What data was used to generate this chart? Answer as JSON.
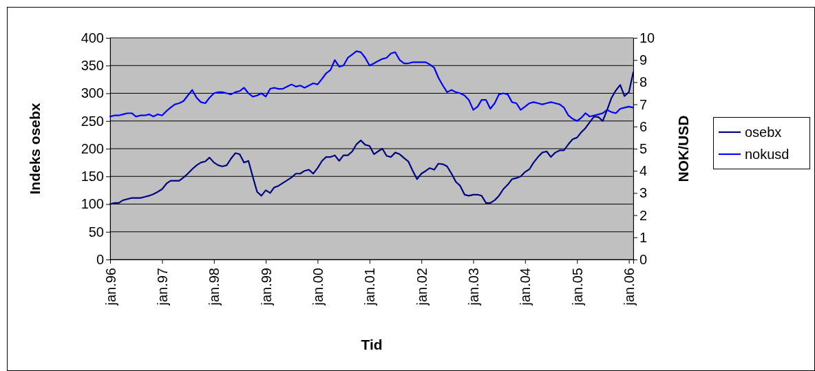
{
  "chart_data": {
    "type": "line",
    "xlabel": "Tid",
    "ylabel": "Indeks osebx",
    "y2label": "NOK/USD",
    "x": [
      "1996-01",
      "1996-02",
      "1996-03",
      "1996-04",
      "1996-05",
      "1996-06",
      "1996-07",
      "1996-08",
      "1996-09",
      "1996-10",
      "1996-11",
      "1996-12",
      "1997-01",
      "1997-02",
      "1997-03",
      "1997-04",
      "1997-05",
      "1997-06",
      "1997-07",
      "1997-08",
      "1997-09",
      "1997-10",
      "1997-11",
      "1997-12",
      "1998-01",
      "1998-02",
      "1998-03",
      "1998-04",
      "1998-05",
      "1998-06",
      "1998-07",
      "1998-08",
      "1998-09",
      "1998-10",
      "1998-11",
      "1998-12",
      "1999-01",
      "1999-02",
      "1999-03",
      "1999-04",
      "1999-05",
      "1999-06",
      "1999-07",
      "1999-08",
      "1999-09",
      "1999-10",
      "1999-11",
      "1999-12",
      "2000-01",
      "2000-02",
      "2000-03",
      "2000-04",
      "2000-05",
      "2000-06",
      "2000-07",
      "2000-08",
      "2000-09",
      "2000-10",
      "2000-11",
      "2000-12",
      "2001-01",
      "2001-02",
      "2001-03",
      "2001-04",
      "2001-05",
      "2001-06",
      "2001-07",
      "2001-08",
      "2001-09",
      "2001-10",
      "2001-11",
      "2001-12",
      "2002-01",
      "2002-02",
      "2002-03",
      "2002-04",
      "2002-05",
      "2002-06",
      "2002-07",
      "2002-08",
      "2002-09",
      "2002-10",
      "2002-11",
      "2002-12",
      "2003-01",
      "2003-02",
      "2003-03",
      "2003-04",
      "2003-05",
      "2003-06",
      "2003-07",
      "2003-08",
      "2003-09",
      "2003-10",
      "2003-11",
      "2003-12",
      "2004-01",
      "2004-02",
      "2004-03",
      "2004-04",
      "2004-05",
      "2004-06",
      "2004-07",
      "2004-08",
      "2004-09",
      "2004-10",
      "2004-11",
      "2004-12",
      "2005-01",
      "2005-02",
      "2005-03",
      "2005-04",
      "2005-05",
      "2005-06",
      "2005-07",
      "2005-08",
      "2005-09",
      "2005-10",
      "2005-11",
      "2005-12",
      "2006-01",
      "2006-02"
    ],
    "series": [
      {
        "name": "osebx",
        "color": "#000080",
        "values": [
          100,
          102,
          102,
          107,
          109,
          111,
          111,
          111,
          113,
          115,
          118,
          122,
          127,
          137,
          142,
          142,
          142,
          148,
          155,
          163,
          170,
          175,
          177,
          184,
          175,
          170,
          168,
          170,
          182,
          192,
          190,
          175,
          178,
          150,
          122,
          115,
          125,
          120,
          130,
          133,
          138,
          143,
          148,
          155,
          155,
          160,
          162,
          155,
          165,
          178,
          185,
          185,
          188,
          178,
          188,
          188,
          195,
          208,
          215,
          207,
          205,
          190,
          195,
          200,
          187,
          185,
          193,
          190,
          183,
          177,
          160,
          145,
          155,
          160,
          165,
          162,
          173,
          172,
          168,
          155,
          140,
          133,
          117,
          115,
          117,
          117,
          115,
          102,
          102,
          107,
          115,
          127,
          135,
          145,
          147,
          150,
          158,
          163,
          175,
          185,
          193,
          195,
          185,
          193,
          197,
          197,
          208,
          217,
          220,
          230,
          237,
          248,
          258,
          257,
          250,
          270,
          292,
          305,
          315,
          295,
          302,
          338
        ]
      },
      {
        "name": "nokusd",
        "color": "#0000ff",
        "axis": "y2",
        "values": [
          6.45,
          6.5,
          6.5,
          6.55,
          6.6,
          6.6,
          6.45,
          6.5,
          6.5,
          6.55,
          6.45,
          6.55,
          6.5,
          6.7,
          6.85,
          7.0,
          7.05,
          7.15,
          7.4,
          7.65,
          7.3,
          7.1,
          7.05,
          7.3,
          7.5,
          7.55,
          7.55,
          7.5,
          7.45,
          7.55,
          7.6,
          7.75,
          7.5,
          7.35,
          7.4,
          7.5,
          7.35,
          7.7,
          7.75,
          7.7,
          7.7,
          7.8,
          7.9,
          7.8,
          7.85,
          7.75,
          7.85,
          7.95,
          7.9,
          8.15,
          8.4,
          8.55,
          9.0,
          8.7,
          8.75,
          9.1,
          9.25,
          9.4,
          9.35,
          9.1,
          8.75,
          8.85,
          8.95,
          9.05,
          9.1,
          9.3,
          9.35,
          9.0,
          8.85,
          8.85,
          8.9,
          8.9,
          8.9,
          8.9,
          8.8,
          8.65,
          8.2,
          7.85,
          7.55,
          7.65,
          7.55,
          7.5,
          7.4,
          7.2,
          6.75,
          6.9,
          7.2,
          7.2,
          6.8,
          7.05,
          7.45,
          7.5,
          7.45,
          7.1,
          7.05,
          6.75,
          6.9,
          7.05,
          7.1,
          7.05,
          7.0,
          7.05,
          7.1,
          7.05,
          7.0,
          6.85,
          6.5,
          6.35,
          6.25,
          6.4,
          6.6,
          6.45,
          6.5,
          6.55,
          6.6,
          6.75,
          6.65,
          6.6,
          6.8,
          6.85,
          6.9,
          6.85
        ]
      }
    ],
    "xlim": [
      "1996-01",
      "2006-02"
    ],
    "xticks": [
      {
        "value": "1996-01",
        "label": "jan.96"
      },
      {
        "value": "1997-01",
        "label": "jan.97"
      },
      {
        "value": "1998-01",
        "label": "jan.98"
      },
      {
        "value": "1999-01",
        "label": "jan.99"
      },
      {
        "value": "2000-01",
        "label": "jan.00"
      },
      {
        "value": "2001-01",
        "label": "jan.01"
      },
      {
        "value": "2002-01",
        "label": "jan.02"
      },
      {
        "value": "2003-01",
        "label": "jan.03"
      },
      {
        "value": "2004-01",
        "label": "jan.04"
      },
      {
        "value": "2005-01",
        "label": "jan.05"
      },
      {
        "value": "2006-01",
        "label": "jan.06"
      }
    ],
    "ylim": [
      0,
      400
    ],
    "yticks": [
      0,
      50,
      100,
      150,
      200,
      250,
      300,
      350,
      400
    ],
    "y2lim": [
      0,
      10
    ],
    "y2ticks": [
      0,
      1,
      2,
      3,
      4,
      5,
      6,
      7,
      8,
      9,
      10
    ],
    "grid": "y",
    "legend": "right",
    "marker": "none",
    "line_style": "solid"
  }
}
